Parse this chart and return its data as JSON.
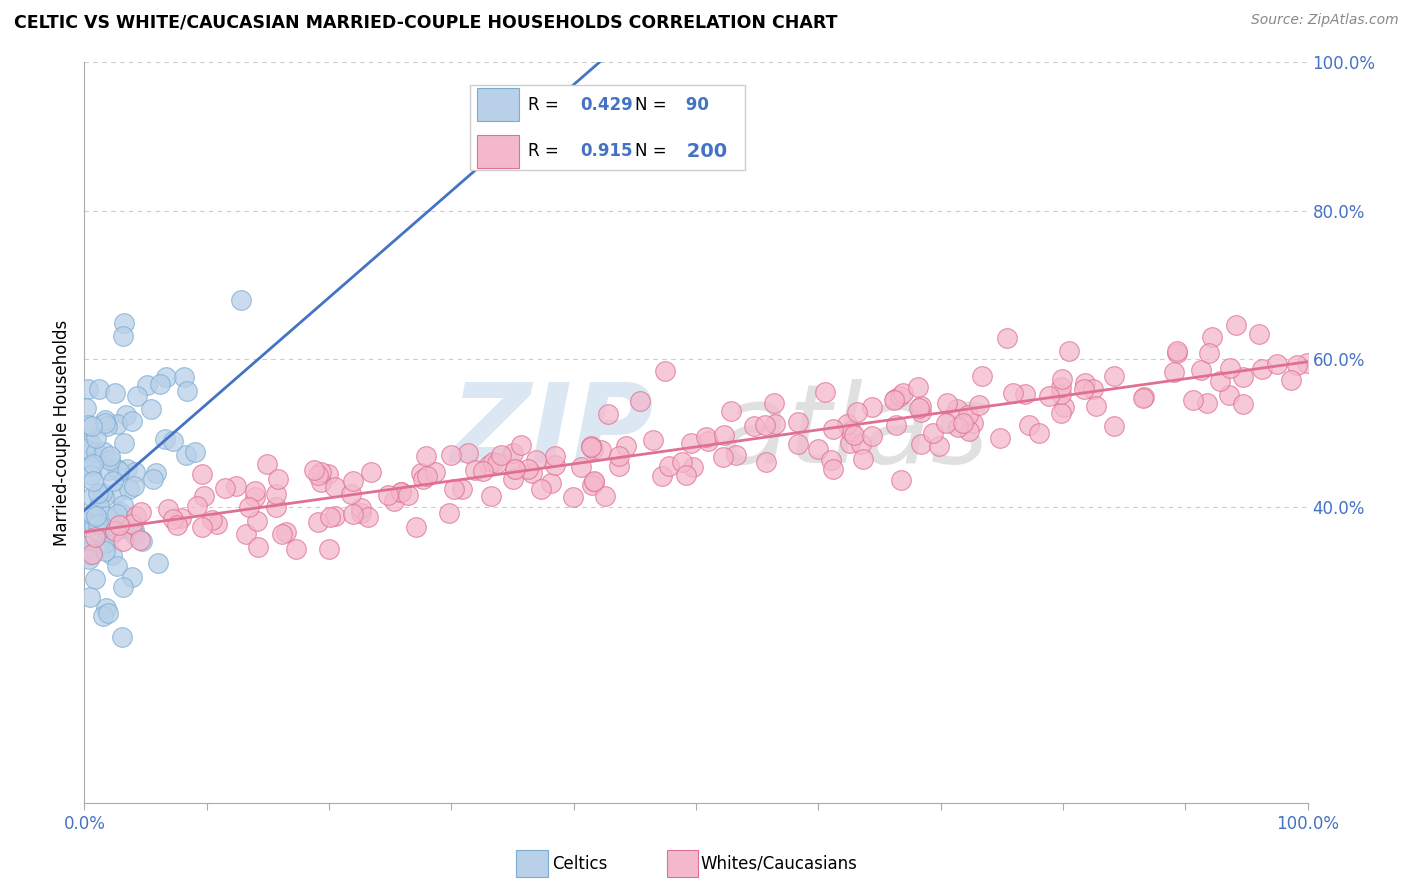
{
  "title": "CELTIC VS WHITE/CAUCASIAN MARRIED-COUPLE HOUSEHOLDS CORRELATION CHART",
  "source": "Source: ZipAtlas.com",
  "ylabel": "Married-couple Households",
  "celtics_color": "#b8d0e8",
  "celtics_edge": "#7badd4",
  "whites_color": "#f4b8cc",
  "whites_edge": "#e07090",
  "line_blue": "#4472c4",
  "line_pink": "#e07090",
  "R_celtics": 0.429,
  "N_celtics": 90,
  "R_whites": 0.915,
  "N_whites": 200,
  "legend_color": "#4472c4",
  "background_color": "#ffffff",
  "grid_color": "#cccccc",
  "ytick_vals": [
    0.4,
    0.6,
    0.8,
    1.0
  ],
  "ytick_labels": [
    "40.0%",
    "60.0%",
    "80.0%",
    "100.0%"
  ],
  "tick_color": "#4472c4"
}
